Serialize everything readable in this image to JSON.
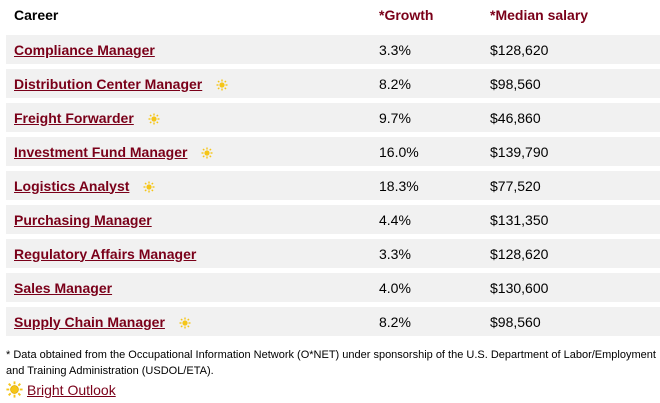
{
  "table": {
    "headers": [
      "Career",
      "*Growth",
      "*Median salary"
    ],
    "rows": [
      {
        "career": "Compliance Manager",
        "growth": "3.3%",
        "salary": "$128,620",
        "bright": false
      },
      {
        "career": "Distribution Center Manager",
        "growth": "8.2%",
        "salary": "$98,560",
        "bright": true
      },
      {
        "career": "Freight Forwarder",
        "growth": "9.7%",
        "salary": "$46,860",
        "bright": true
      },
      {
        "career": "Investment Fund Manager",
        "growth": "16.0%",
        "salary": "$139,790",
        "bright": true
      },
      {
        "career": "Logistics Analyst",
        "growth": "18.3%",
        "salary": "$77,520",
        "bright": true
      },
      {
        "career": "Purchasing Manager",
        "growth": "4.4%",
        "salary": "$131,350",
        "bright": false
      },
      {
        "career": "Regulatory Affairs Manager",
        "growth": "3.3%",
        "salary": "$128,620",
        "bright": false
      },
      {
        "career": "Sales Manager",
        "growth": "4.0%",
        "salary": "$130,600",
        "bright": false
      },
      {
        "career": "Supply Chain Manager",
        "growth": "8.2%",
        "salary": "$98,560",
        "bright": true
      }
    ]
  },
  "footnote": "* Data obtained from the Occupational Information Network (O*NET) under sponsorship of the U.S. Department of Labor/Employment and Training Administration (USDOL/ETA).",
  "legend": {
    "label": "Bright Outlook",
    "icon": "sun-icon"
  },
  "colors": {
    "link": "#7a0019",
    "row_bg": "#f1f1f1",
    "sun": "#f5c518"
  }
}
